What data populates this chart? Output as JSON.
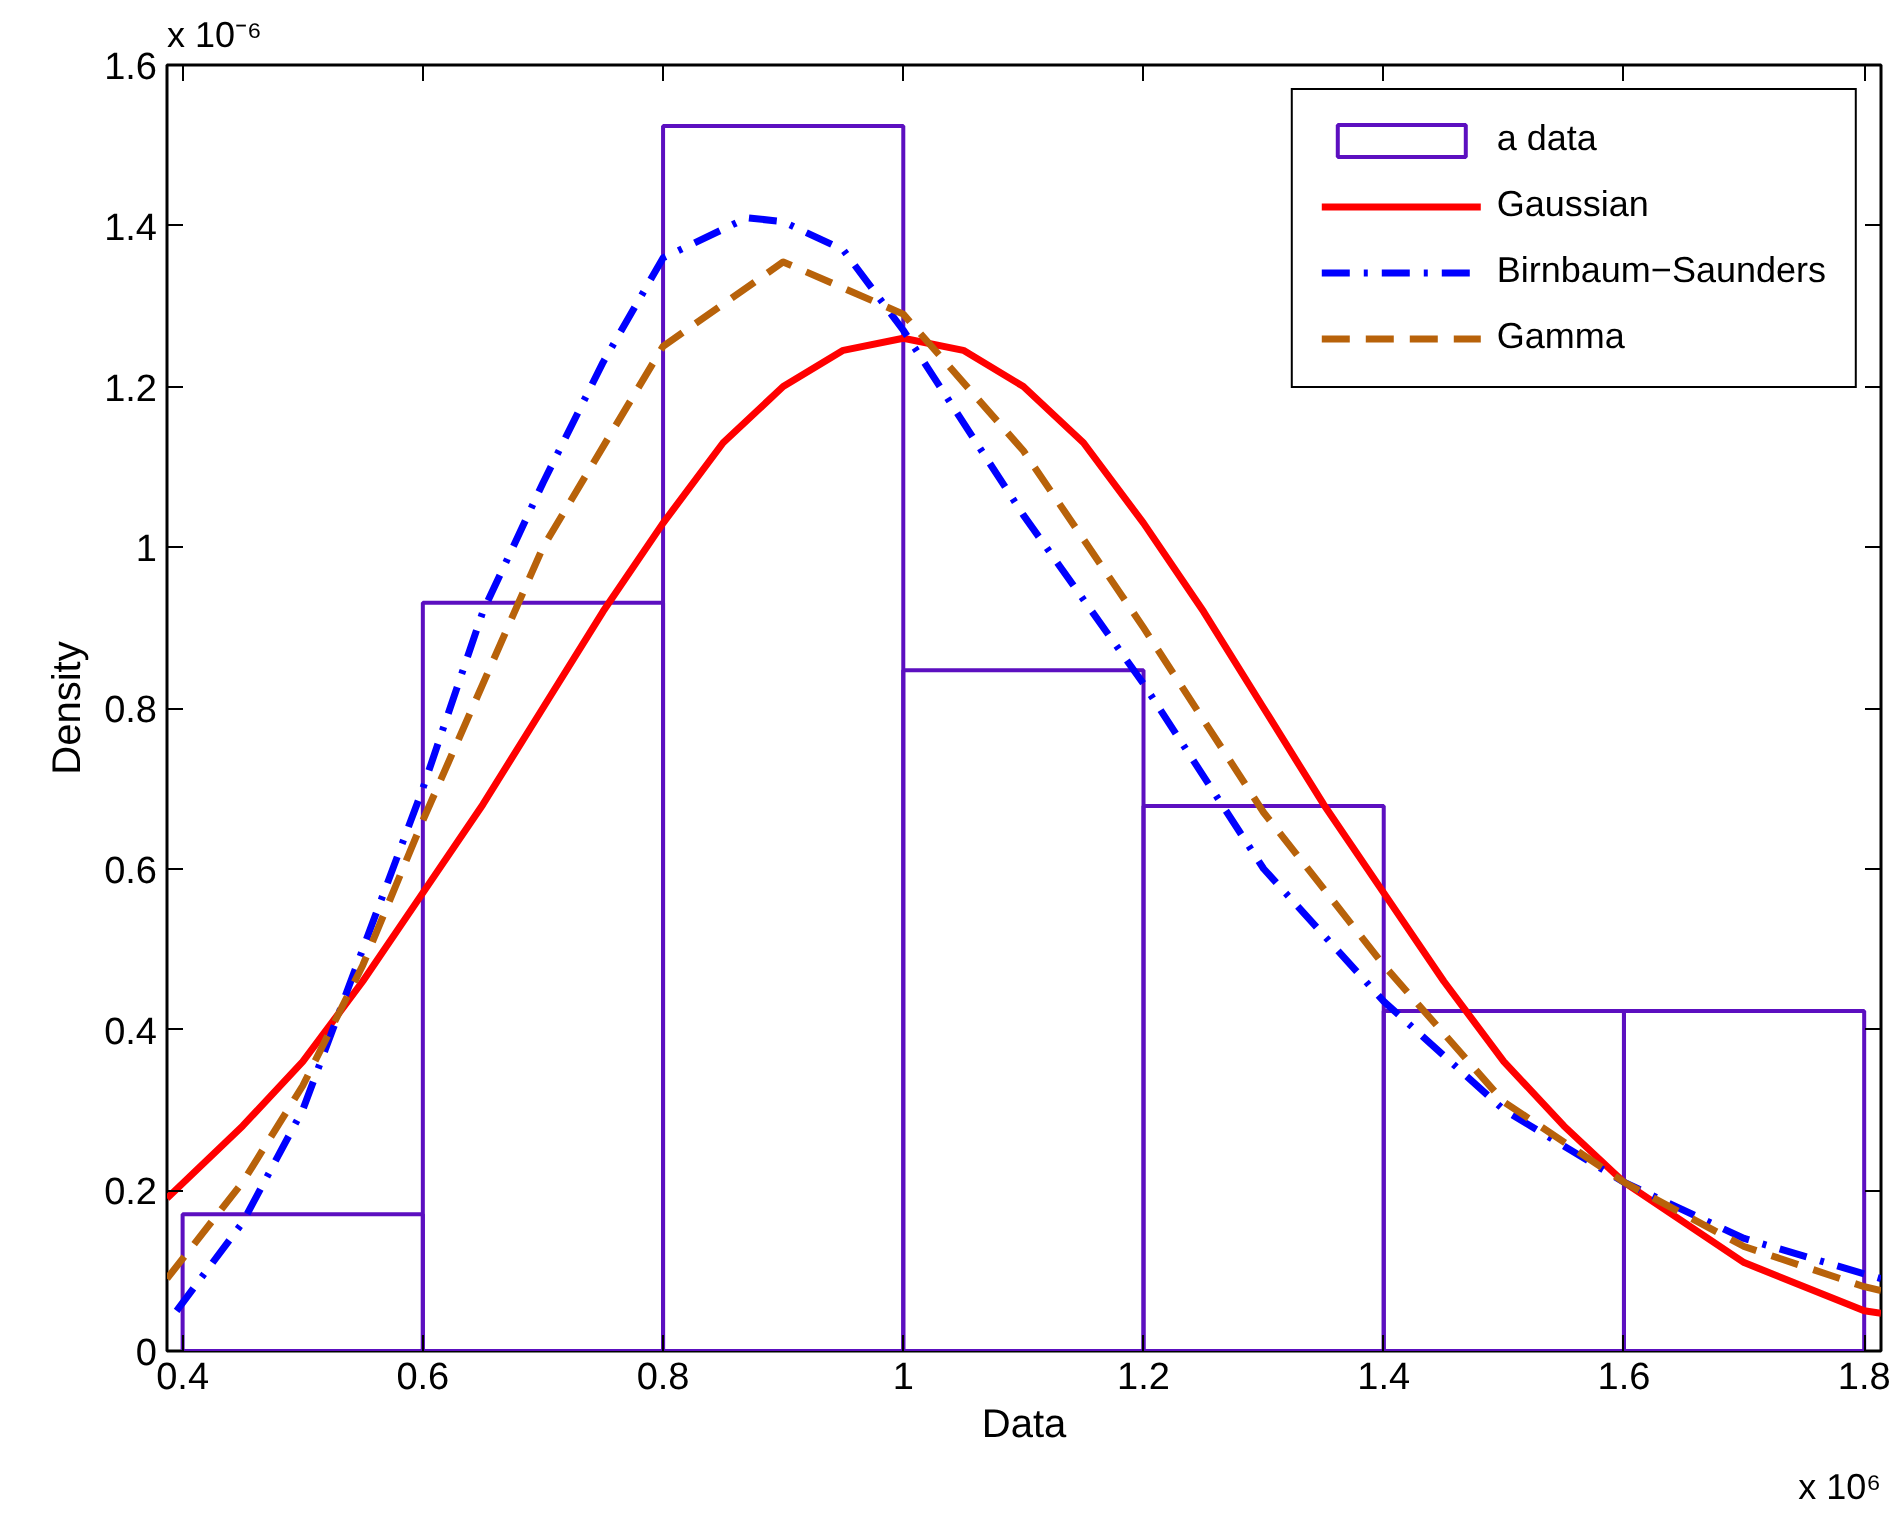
{
  "chart_data": {
    "type": "histogram",
    "xlabel": "Data",
    "ylabel": "Density",
    "annotations": [
      "x 10⁻⁶",
      "x 10⁶"
    ],
    "xlim": [
      0.387,
      1.814
    ],
    "ylim": [
      0,
      1.6
    ],
    "xticks": [
      0.4,
      0.6,
      0.8,
      1,
      1.2,
      1.4,
      1.6,
      1.8
    ],
    "yticks": [
      0,
      0.2,
      0.4,
      0.6,
      0.8,
      1,
      1.2,
      1.4,
      1.6
    ],
    "grid": false,
    "legend": "top right",
    "series": [
      {
        "name": "a data",
        "color": "#5c0fc0",
        "bins": [
          0.4,
          0.6,
          0.8,
          1.0,
          1.2,
          1.4,
          1.6,
          1.8
        ],
        "values": [
          0.17,
          0.931,
          1.524,
          0.847,
          0.678,
          0.423,
          0.423
        ]
      },
      {
        "name": "Gaussian",
        "type": "line",
        "color": "#ff0000",
        "line_style": "solid",
        "x": [
          0.387,
          0.45,
          0.5,
          0.55,
          0.6,
          0.65,
          0.7,
          0.75,
          0.8,
          0.85,
          0.9,
          0.95,
          1.0,
          1.05,
          1.1,
          1.15,
          1.2,
          1.25,
          1.3,
          1.35,
          1.4,
          1.45,
          1.5,
          1.55,
          1.6,
          1.7,
          1.8,
          1.814
        ],
        "values": [
          0.19,
          0.28,
          0.36,
          0.46,
          0.57,
          0.68,
          0.8,
          0.92,
          1.03,
          1.13,
          1.2,
          1.245,
          1.26,
          1.245,
          1.2,
          1.13,
          1.03,
          0.92,
          0.8,
          0.68,
          0.57,
          0.46,
          0.36,
          0.28,
          0.21,
          0.11,
          0.05,
          0.047
        ]
      },
      {
        "name": "Birnbaum−Saunders",
        "type": "line",
        "color": "#0000ff",
        "line_style": "dashdot",
        "x": [
          0.395,
          0.45,
          0.5,
          0.55,
          0.6,
          0.65,
          0.7,
          0.75,
          0.8,
          0.87,
          0.9,
          0.95,
          1.0,
          1.1,
          1.2,
          1.3,
          1.4,
          1.5,
          1.6,
          1.7,
          1.8,
          1.814
        ],
        "values": [
          0.05,
          0.16,
          0.3,
          0.5,
          0.7,
          0.92,
          1.08,
          1.23,
          1.36,
          1.41,
          1.405,
          1.37,
          1.27,
          1.04,
          0.83,
          0.6,
          0.435,
          0.3,
          0.21,
          0.14,
          0.096,
          0.09
        ]
      },
      {
        "name": "Gamma",
        "type": "line",
        "color": "#b8620a",
        "line_style": "dashed",
        "x": [
          0.387,
          0.45,
          0.5,
          0.55,
          0.6,
          0.65,
          0.7,
          0.8,
          0.9,
          1.0,
          1.1,
          1.2,
          1.3,
          1.4,
          1.5,
          1.6,
          1.7,
          1.8,
          1.814
        ],
        "values": [
          0.09,
          0.21,
          0.33,
          0.48,
          0.66,
          0.83,
          1.0,
          1.25,
          1.355,
          1.29,
          1.12,
          0.9,
          0.67,
          0.48,
          0.31,
          0.21,
          0.13,
          0.08,
          0.075
        ]
      }
    ]
  }
}
